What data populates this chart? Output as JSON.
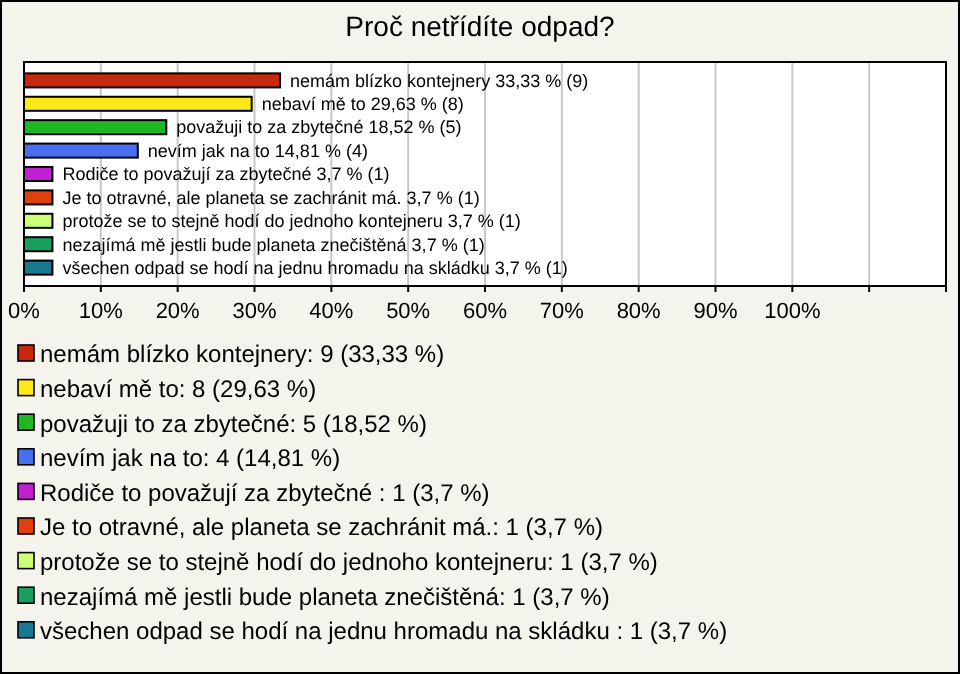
{
  "chart_data": {
    "type": "bar",
    "orientation": "horizontal",
    "stacked": true,
    "title": "Proč netřídíte odpad?",
    "categories": [
      null,
      null,
      null,
      null,
      null,
      null,
      null,
      null,
      null
    ],
    "series": [
      {
        "name": "nemám blízko kontejnery: 9 (33,33 %)",
        "color": "#c8280e",
        "values": [
          33.33,
          null,
          null,
          null,
          null,
          null,
          null,
          null,
          null
        ],
        "value_labels": [
          "nemám blízko kontejnery 33,33 % (9)",
          null,
          null,
          null,
          null,
          null,
          null,
          null,
          null
        ]
      },
      {
        "name": "nebaví mě to: 8 (29,63 %)",
        "color": "#ffe81a",
        "values": [
          null,
          29.63,
          null,
          null,
          null,
          null,
          null,
          null,
          null
        ],
        "value_labels": [
          null,
          "nebaví mě to 29,63 % (8)",
          null,
          null,
          null,
          null,
          null,
          null,
          null
        ]
      },
      {
        "name": "považuji to za zbytečné: 5 (18,52 %)",
        "color": "#20b820",
        "values": [
          null,
          null,
          18.52,
          null,
          null,
          null,
          null,
          null,
          null
        ],
        "value_labels": [
          null,
          null,
          "považuji to za zbytečné 18,52 % (5)",
          null,
          null,
          null,
          null,
          null,
          null
        ]
      },
      {
        "name": "nevím jak na to: 4 (14,81 %)",
        "color": "#4a6ef0",
        "values": [
          null,
          null,
          null,
          14.81,
          null,
          null,
          null,
          null,
          null
        ],
        "value_labels": [
          null,
          null,
          null,
          "nevím jak na to 14,81 % (4)",
          null,
          null,
          null,
          null,
          null
        ]
      },
      {
        "name": "Rodiče to považují za zbytečné : 1 (3,7 %)",
        "color": "#c020d0",
        "values": [
          null,
          null,
          null,
          null,
          3.7,
          null,
          null,
          null,
          null
        ],
        "value_labels": [
          null,
          null,
          null,
          null,
          "Rodiče to považují za zbytečné  3,7 % (1)",
          null,
          null,
          null,
          null
        ]
      },
      {
        "name": "Je to otravné, ale planeta se zachránit má.: 1 (3,7 %)",
        "color": "#e04010",
        "values": [
          null,
          null,
          null,
          null,
          null,
          3.7,
          null,
          null,
          null
        ],
        "value_labels": [
          null,
          null,
          null,
          null,
          null,
          "Je to otravné, ale planeta se zachránit má. 3,7 % (1)",
          null,
          null,
          null
        ]
      },
      {
        "name": "protože se to stejně hodí do jednoho kontejneru: 1 (3,7 %)",
        "color": "#ccff77",
        "values": [
          null,
          null,
          null,
          null,
          null,
          null,
          3.7,
          null,
          null
        ],
        "value_labels": [
          null,
          null,
          null,
          null,
          null,
          null,
          "protože se to stejně hodí do jednoho kontejneru 3,7 % (1)",
          null,
          null
        ]
      },
      {
        "name": "nezajímá mě jestli bude planeta znečištěná: 1 (3,7 %)",
        "color": "#18a060",
        "values": [
          null,
          null,
          null,
          null,
          null,
          null,
          null,
          3.7,
          null
        ],
        "value_labels": [
          null,
          null,
          null,
          null,
          null,
          null,
          null,
          "nezajímá mě jestli bude planeta znečištěná 3,7 % (1)",
          null
        ]
      },
      {
        "name": "všechen odpad se hodí na jednu hromadu na skládku : 1 (3,7 %)",
        "color": "#1a7890",
        "values": [
          null,
          null,
          null,
          null,
          null,
          null,
          null,
          null,
          3.7
        ],
        "value_labels": [
          null,
          null,
          null,
          null,
          null,
          null,
          null,
          null,
          "všechen odpad se hodí na jednu hromadu na skládku  3,7 % (1)"
        ]
      }
    ],
    "xlim": [
      0,
      120
    ],
    "xticks": [
      {
        "value": 0,
        "label": "0%"
      },
      {
        "value": 10,
        "label": "10%"
      },
      {
        "value": 20,
        "label": "20%"
      },
      {
        "value": 30,
        "label": "30%"
      },
      {
        "value": 40,
        "label": "40%"
      },
      {
        "value": 50,
        "label": "50%"
      },
      {
        "value": 60,
        "label": "60%"
      },
      {
        "value": 70,
        "label": "70%"
      },
      {
        "value": 80,
        "label": "80%"
      },
      {
        "value": 90,
        "label": "90%"
      },
      {
        "value": 100,
        "label": "100%"
      },
      {
        "value": 110,
        "label": null
      },
      {
        "value": 120,
        "label": null
      }
    ],
    "grid": "x",
    "legend": "bottom",
    "tick_labels": "x"
  }
}
